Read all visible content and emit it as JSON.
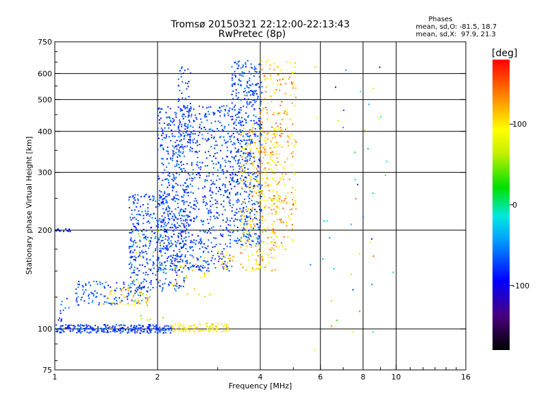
{
  "chart_data": {
    "type": "scatter",
    "title": "Tromsø 20150321 22:12:00-22:13:43",
    "subtitle": "RwPretec (8p)",
    "xlabel": "Frequency [MHz]",
    "ylabel": "Stationary phase Virtual Height [km]",
    "x_scale": "log",
    "y_scale": "log",
    "xlim": [
      1,
      16
    ],
    "ylim": [
      75,
      750
    ],
    "x_ticks": [
      "1",
      "2",
      "4",
      "6",
      "8",
      "10",
      "16"
    ],
    "x_tick_values": [
      1,
      2,
      4,
      6,
      8,
      10,
      16
    ],
    "y_ticks": [
      "75",
      "100",
      "200",
      "300",
      "400",
      "500",
      "600",
      "750"
    ],
    "y_tick_values": [
      75,
      100,
      200,
      300,
      400,
      500,
      600,
      750
    ],
    "grid": true,
    "grid_x_values": [
      2,
      4,
      6,
      8,
      10
    ],
    "grid_y_values": [
      100,
      200,
      300,
      400,
      500,
      600
    ],
    "phases_stats": {
      "title": "Phases",
      "line_o": "mean, sd,O: -81.5, 18.7",
      "line_x": "mean, sd,X:  97.9, 21.3"
    },
    "colorbar": {
      "label": "[deg]",
      "range": [
        -180,
        180
      ],
      "ticks": [
        "100",
        "0",
        "-100"
      ],
      "tick_values": [
        100,
        0,
        -100
      ],
      "colormap": "rainbow",
      "placement": "right"
    },
    "clusters": [
      {
        "freq": [
          1.0,
          1.12
        ],
        "height": [
          198,
          202
        ],
        "phase": [
          -110,
          -90
        ],
        "n": 18
      },
      {
        "freq": [
          1.0,
          2.2
        ],
        "height": [
          97,
          103
        ],
        "phase": [
          -105,
          -80
        ],
        "n": 260
      },
      {
        "freq": [
          2.2,
          3.25
        ],
        "height": [
          98,
          104
        ],
        "phase": [
          95,
          120
        ],
        "n": 90
      },
      {
        "freq": [
          1.02,
          1.1
        ],
        "height": [
          100,
          130
        ],
        "phase": [
          -120,
          -70
        ],
        "n": 18
      },
      {
        "freq": [
          1.15,
          1.9
        ],
        "height": [
          118,
          140
        ],
        "phase": [
          -110,
          -60
        ],
        "n": 120
      },
      {
        "freq": [
          1.35,
          1.9
        ],
        "height": [
          118,
          135
        ],
        "phase": [
          80,
          140
        ],
        "n": 50
      },
      {
        "freq": [
          1.65,
          2.4
        ],
        "height": [
          130,
          260
        ],
        "phase": [
          -110,
          -70
        ],
        "n": 420
      },
      {
        "freq": [
          1.7,
          2.1
        ],
        "height": [
          105,
          200
        ],
        "phase": [
          20,
          120
        ],
        "n": 35
      },
      {
        "freq": [
          2.0,
          3.3
        ],
        "height": [
          150,
          480
        ],
        "phase": [
          -110,
          -70
        ],
        "n": 900
      },
      {
        "freq": [
          2.3,
          2.5
        ],
        "height": [
          350,
          640
        ],
        "phase": [
          -110,
          -80
        ],
        "n": 70
      },
      {
        "freq": [
          2.2,
          2.9
        ],
        "height": [
          125,
          165
        ],
        "phase": [
          90,
          130
        ],
        "n": 30
      },
      {
        "freq": [
          3.0,
          3.35
        ],
        "height": [
          150,
          175
        ],
        "phase": [
          90,
          130
        ],
        "n": 25
      },
      {
        "freq": [
          3.3,
          4.05
        ],
        "height": [
          180,
          660
        ],
        "phase": [
          -110,
          -70
        ],
        "n": 520
      },
      {
        "freq": [
          3.5,
          4.5
        ],
        "height": [
          150,
          420
        ],
        "phase": [
          90,
          140
        ],
        "n": 300
      },
      {
        "freq": [
          4.0,
          5.1
        ],
        "height": [
          230,
          660
        ],
        "phase": [
          90,
          150
        ],
        "n": 220
      },
      {
        "freq": [
          4.3,
          5.0
        ],
        "height": [
          170,
          250
        ],
        "phase": [
          100,
          150
        ],
        "n": 50
      },
      {
        "freq": [
          5.5,
          10.5
        ],
        "height": [
          85,
          640
        ],
        "phase": [
          -120,
          150
        ],
        "n": 45
      }
    ]
  }
}
